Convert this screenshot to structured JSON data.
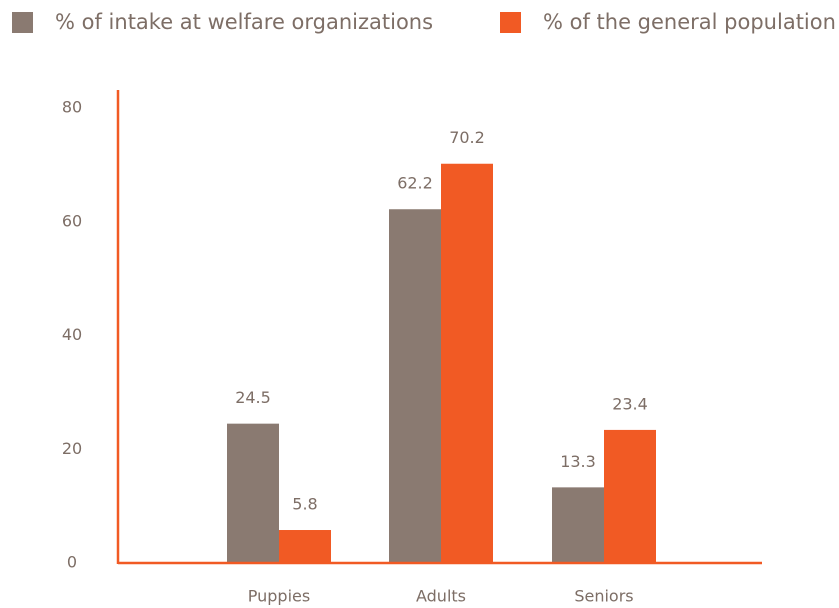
{
  "chart_data": {
    "type": "bar",
    "categories": [
      "Puppies",
      "Adults",
      "Seniors"
    ],
    "series": [
      {
        "name": "% of intake at welfare organizations",
        "color": "#8a7a71",
        "values": [
          24.5,
          62.2,
          13.3
        ]
      },
      {
        "name": "% of the general population",
        "color": "#f15a24",
        "values": [
          5.8,
          70.2,
          23.4
        ]
      }
    ],
    "ylim": [
      0,
      80
    ],
    "yticks": [
      0,
      20,
      40,
      60,
      80
    ],
    "axis_color": "#f15a24"
  }
}
